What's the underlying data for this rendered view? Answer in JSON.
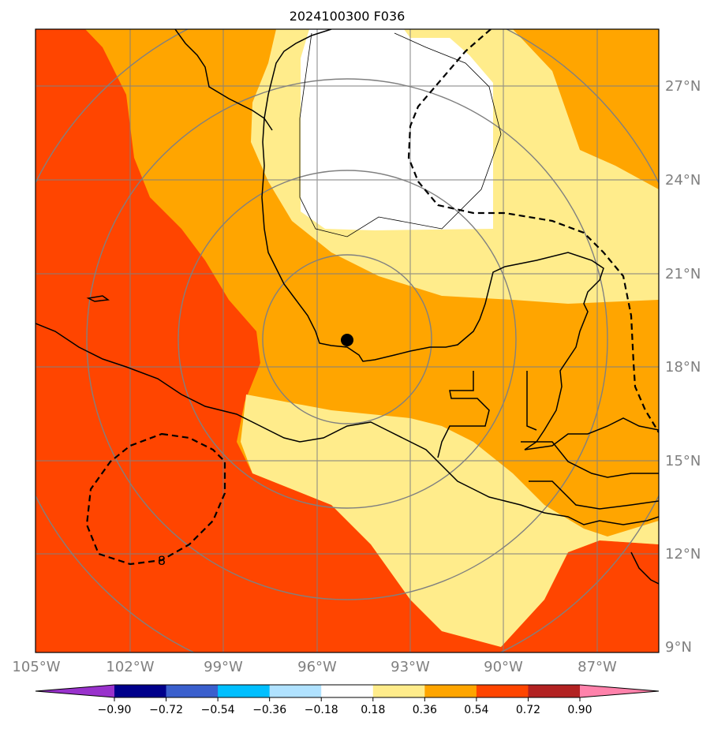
{
  "title": "2024100300 F036",
  "map": {
    "lon_ticks": [
      "105°W",
      "102°W",
      "99°W",
      "96°W",
      "93°W",
      "90°W",
      "87°W"
    ],
    "lat_ticks": [
      "27°N",
      "24°N",
      "21°N",
      "18°N",
      "15°N",
      "12°N",
      "9°N"
    ],
    "contour_label": "8",
    "marker": {
      "name": "center-point"
    }
  },
  "colorbar": {
    "ticks": [
      "−0.90",
      "−0.72",
      "−0.54",
      "−0.36",
      "−0.18",
      "0.18",
      "0.36",
      "0.54",
      "0.72",
      "0.90"
    ],
    "colors": [
      "#9932cc",
      "#00008b",
      "#3a5fcd",
      "#00bfff",
      "#b0e2ff",
      "#ffffff",
      "#ffec8b",
      "#ffa500",
      "#ff4500",
      "#b22222",
      "#ff82ab"
    ]
  },
  "colors": {
    "red": "#ff4500",
    "orange": "#ffa500",
    "yellow": "#ffec8b",
    "white": "#ffffff",
    "grid": "#808080"
  }
}
